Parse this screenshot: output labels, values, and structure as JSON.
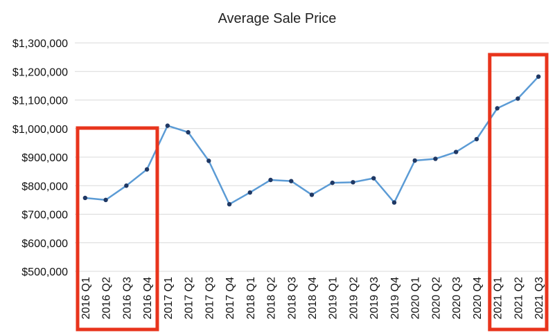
{
  "chart_data": {
    "type": "line",
    "title": "Average Sale Price",
    "xlabel": "",
    "ylabel": "",
    "ylim": [
      500000,
      1300000
    ],
    "y_ticks": [
      500000,
      600000,
      700000,
      800000,
      900000,
      1000000,
      1100000,
      1200000,
      1300000
    ],
    "y_tick_labels": [
      "$500,000",
      "$600,000",
      "$700,000",
      "$800,000",
      "$900,000",
      "$1,000,000",
      "$1,100,000",
      "$1,200,000",
      "$1,300,000"
    ],
    "grid": true,
    "categories": [
      "2016 Q1",
      "2016 Q2",
      "2016 Q3",
      "2016 Q4",
      "2017 Q1",
      "2017 Q2",
      "2017 Q3",
      "2017 Q4",
      "2018 Q1",
      "2018 Q2",
      "2018 Q3",
      "2018 Q4",
      "2019 Q1",
      "2019 Q2",
      "2019 Q3",
      "2019 Q4",
      "2020 Q1",
      "2020 Q2",
      "2020 Q3",
      "2020 Q4",
      "2021 Q1",
      "2021 Q2",
      "2021 Q3"
    ],
    "values": [
      757000,
      750000,
      800000,
      857000,
      1010000,
      987000,
      887000,
      735000,
      776000,
      820000,
      816000,
      768000,
      810000,
      812000,
      826000,
      741000,
      888000,
      894000,
      918000,
      963000,
      1071000,
      1105000,
      1182000
    ],
    "line_color": "#5b9bd5",
    "marker_color": "#1f3864",
    "highlight_color": "#e8341c",
    "highlights": [
      {
        "from": "2016 Q1",
        "to": "2016 Q4"
      },
      {
        "from": "2021 Q1",
        "to": "2021 Q3"
      }
    ]
  }
}
